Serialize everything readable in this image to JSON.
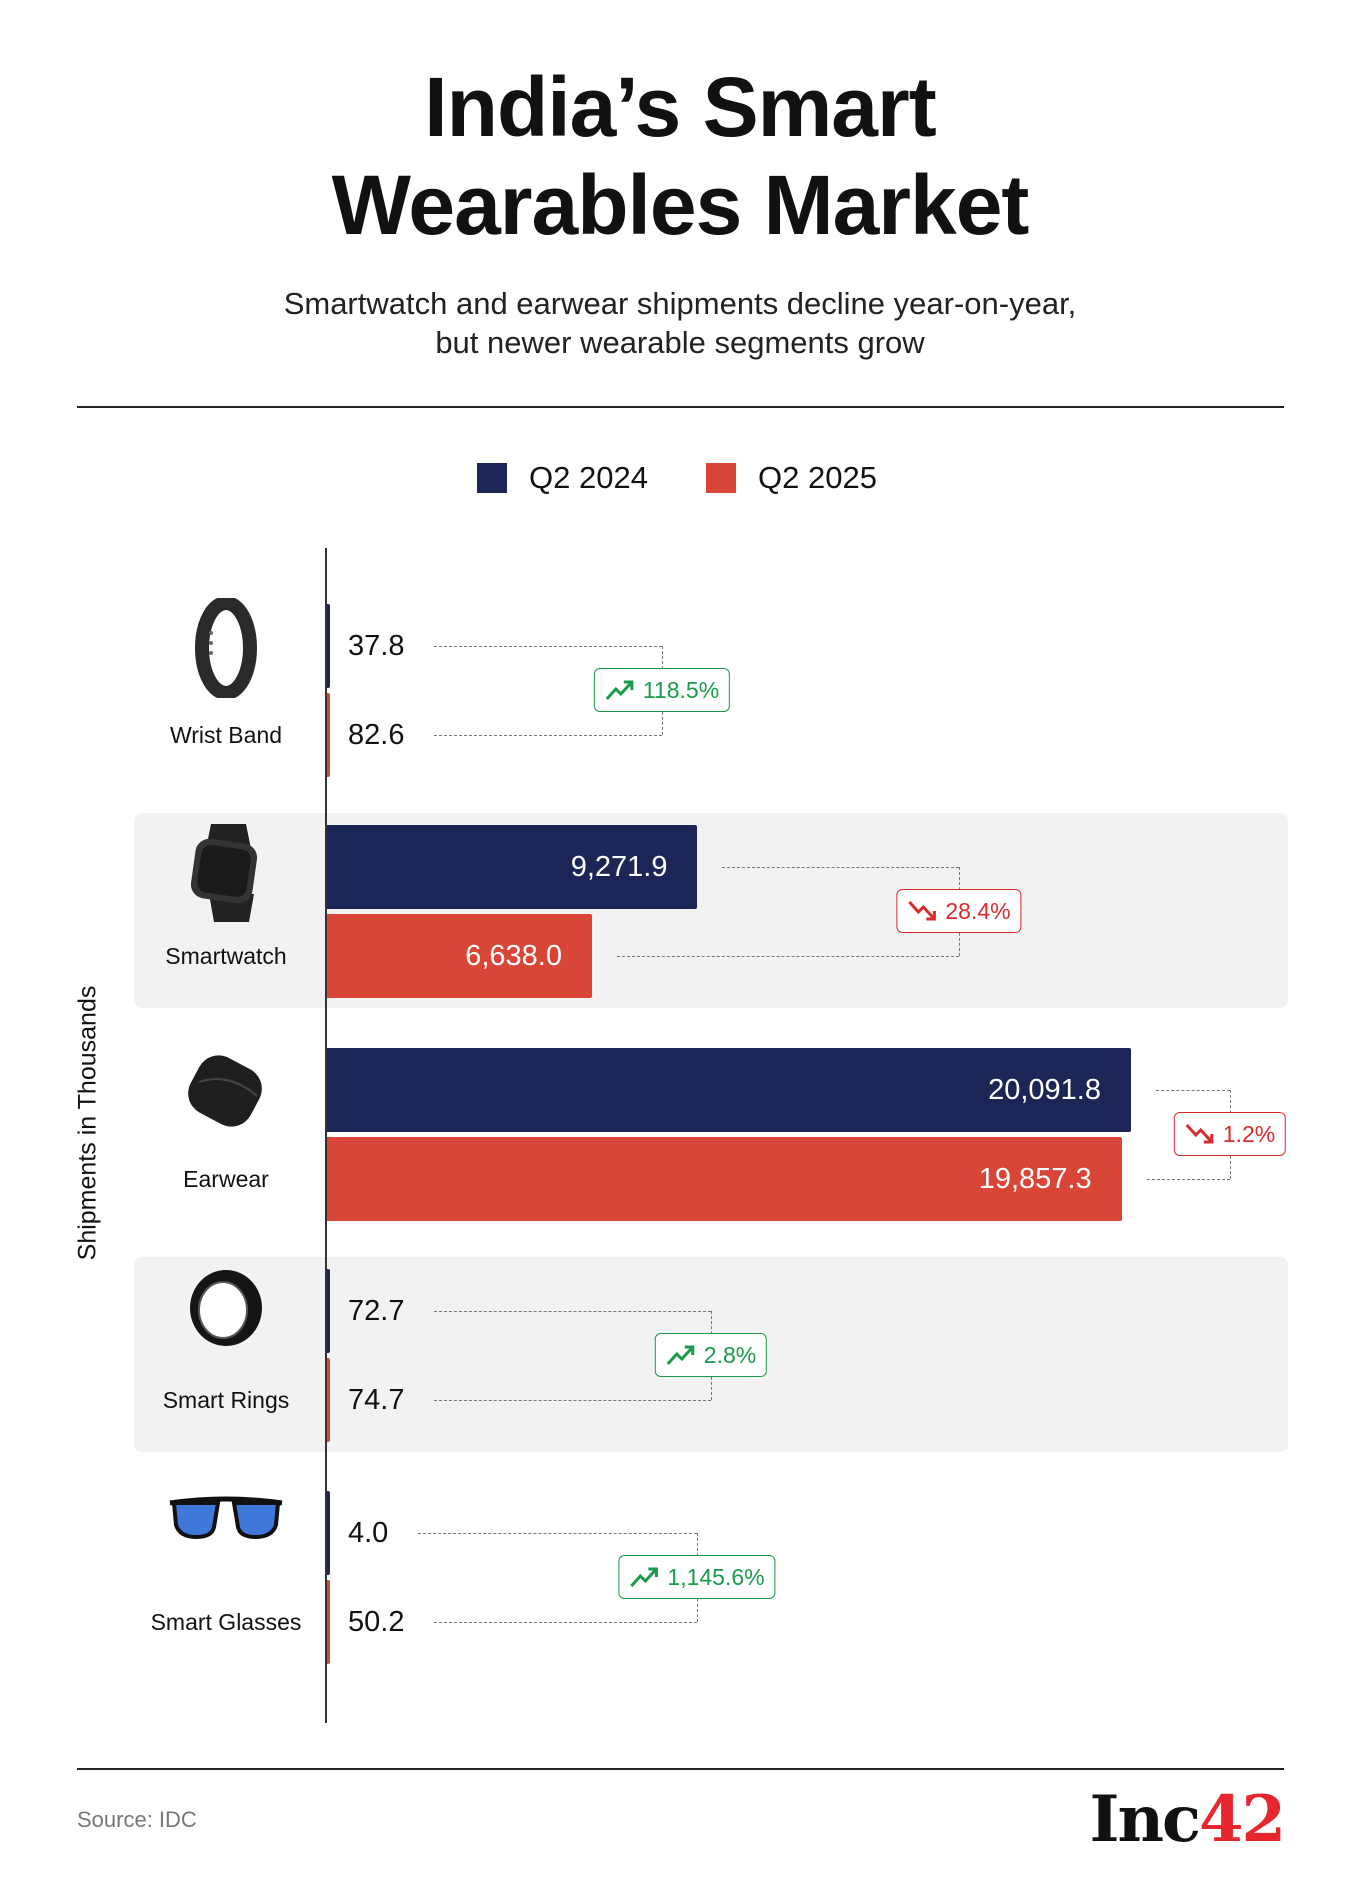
{
  "title_line1": "India’s Smart",
  "title_line2": "Wearables Market",
  "subtitle_line1": "Smartwatch and earwear shipments decline year-on-year,",
  "subtitle_line2": "but newer wearable segments grow",
  "source": "Source: IDC",
  "logo": {
    "text": "Inc",
    "number": "42"
  },
  "colors": {
    "q2_2024": "#1b2656",
    "q2_2025": "#d94536",
    "up": "#1a9a4a",
    "down": "#d92b2b",
    "row_bg": "#f2f2f2"
  },
  "chart_data": {
    "type": "bar",
    "orientation": "horizontal",
    "title": "India’s Smart Wearables Market",
    "ylabel": "Shipments in Thousands",
    "xlabel": "",
    "legend": {
      "placement": "top-center",
      "entries": [
        "Q2 2024",
        "Q2 2025"
      ]
    },
    "categories": [
      "Wrist Band",
      "Smartwatch",
      "Earwear",
      "Smart Rings",
      "Smart Glasses"
    ],
    "icons": [
      "wrist-band-icon",
      "smartwatch-icon",
      "earwear-icon",
      "smart-ring-icon",
      "smart-glasses-icon"
    ],
    "series": [
      {
        "name": "Q2 2024",
        "values": [
          37.8,
          9271.9,
          20091.8,
          72.7,
          4.0
        ],
        "labels": [
          "37.8",
          "9,271.9",
          "20,091.8",
          "72.7",
          "4.0"
        ]
      },
      {
        "name": "Q2 2025",
        "values": [
          82.6,
          6638.0,
          19857.3,
          74.7,
          50.2
        ],
        "labels": [
          "82.6",
          "6,638.0",
          "19,857.3",
          "74.7",
          "50.2"
        ]
      }
    ],
    "changes": [
      {
        "label": "118.5%",
        "direction": "up"
      },
      {
        "label": "28.4%",
        "direction": "down"
      },
      {
        "label": "1.2%",
        "direction": "down"
      },
      {
        "label": "2.8%",
        "direction": "up"
      },
      {
        "label": "1,145.6%",
        "direction": "up"
      }
    ],
    "grid": false
  }
}
